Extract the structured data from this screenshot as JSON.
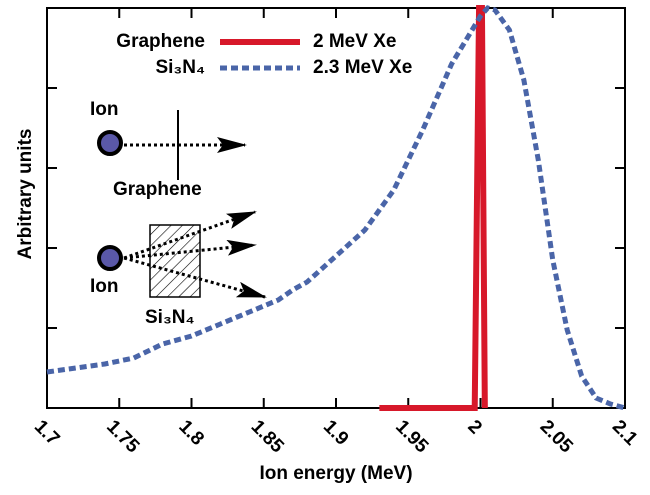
{
  "chart_data": {
    "type": "line",
    "xlabel": "Ion energy (MeV)",
    "ylabel": "Arbitrary units",
    "xlim": [
      1.7,
      2.1
    ],
    "xticks": [
      1.7,
      1.75,
      1.8,
      1.85,
      1.9,
      1.95,
      2,
      2.05,
      2.1
    ],
    "ylim": [
      0,
      1
    ],
    "yticks": [
      0.2,
      0.4,
      0.6,
      0.8
    ],
    "series": [
      {
        "name": "2 MeV Xe",
        "material": "Graphene",
        "color": "#d7182a",
        "dash": false,
        "x": [
          1.93,
          1.996,
          1.999,
          2.001,
          2.003
        ],
        "values": [
          0,
          0,
          1.0,
          1.0,
          0
        ]
      },
      {
        "name": "2.3 MeV Xe",
        "material": "Si₃N₄",
        "color": "#4a65a8",
        "dash": true,
        "x": [
          1.7,
          1.72,
          1.74,
          1.76,
          1.78,
          1.8,
          1.82,
          1.84,
          1.86,
          1.87,
          1.88,
          1.9,
          1.92,
          1.94,
          1.96,
          1.98,
          1.99,
          2.0,
          2.005,
          2.01,
          2.02,
          2.03,
          2.04,
          2.05,
          2.06,
          2.07,
          2.08,
          2.09,
          2.1
        ],
        "values": [
          0.09,
          0.1,
          0.11,
          0.125,
          0.16,
          0.18,
          0.21,
          0.24,
          0.27,
          0.295,
          0.315,
          0.38,
          0.445,
          0.545,
          0.695,
          0.86,
          0.92,
          0.98,
          1.0,
          0.995,
          0.945,
          0.82,
          0.62,
          0.37,
          0.195,
          0.08,
          0.025,
          0.01,
          0.0
        ]
      }
    ],
    "annotations": {
      "ion_top": "Ion",
      "graphene": "Graphene",
      "ion_bottom": "Ion",
      "si3n4": "Si₃N₄"
    }
  }
}
